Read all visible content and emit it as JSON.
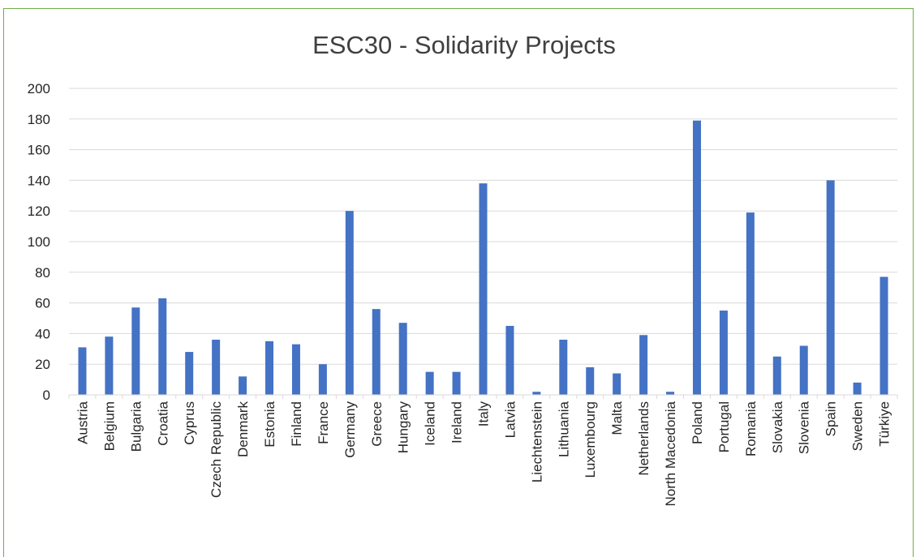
{
  "chart_data": {
    "type": "bar",
    "title": "ESC30 - Solidarity Projects",
    "categories": [
      "Austria",
      "Belgium",
      "Bulgaria",
      "Croatia",
      "Cyprus",
      "Czech Republic",
      "Denmark",
      "Estonia",
      "Finland",
      "France",
      "Germany",
      "Greece",
      "Hungary",
      "Iceland",
      "Ireland",
      "Italy",
      "Latvia",
      "Liechtenstein",
      "Lithuania",
      "Luxembourg",
      "Malta",
      "Netherlands",
      "North Macedonia",
      "Poland",
      "Portugal",
      "Romania",
      "Slovakia",
      "Slovenia",
      "Spain",
      "Sweden",
      "Türkiye"
    ],
    "series": [
      {
        "values": [
          31,
          38,
          57,
          63,
          28,
          36,
          12,
          35,
          33,
          20,
          120,
          56,
          47,
          15,
          15,
          138,
          45,
          2,
          36,
          18,
          14,
          39,
          2,
          179,
          55,
          119,
          25,
          32,
          140,
          8,
          77
        ]
      }
    ],
    "ylim": [
      0,
      200
    ],
    "yticks": [
      0,
      20,
      40,
      60,
      80,
      100,
      120,
      140,
      160,
      180,
      200
    ],
    "xlabel": "",
    "ylabel": "",
    "grid": true,
    "legend": "none",
    "bar_color": "#4472c4",
    "grid_color": "#d9d9d9",
    "frame_color": "#70ad47"
  }
}
